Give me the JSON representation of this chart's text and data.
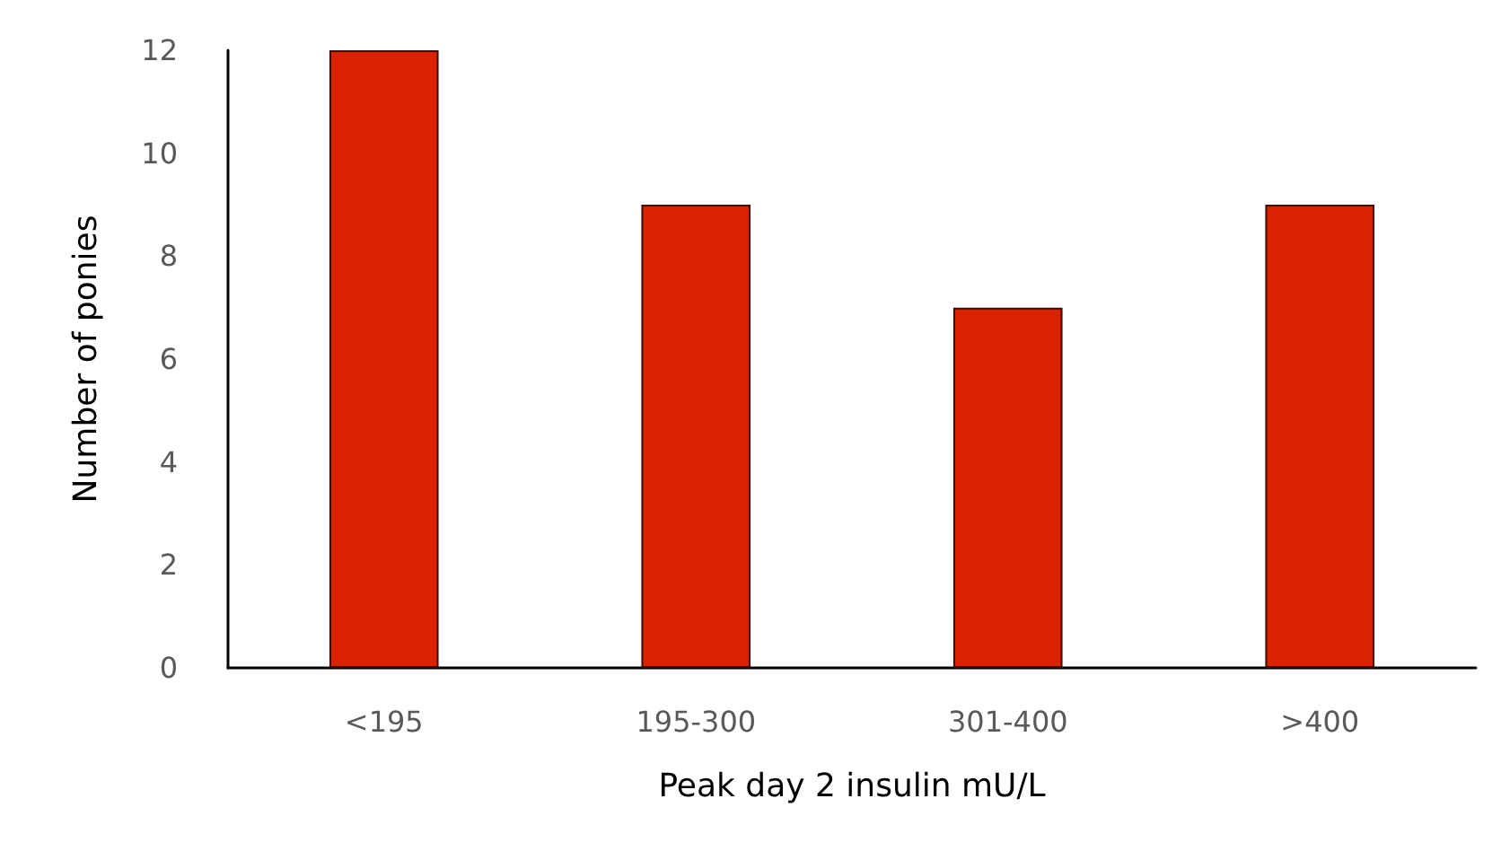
{
  "chart_data": {
    "type": "bar",
    "xlabel": "Peak day 2 insulin mU/L",
    "ylabel": "Number of ponies",
    "categories": [
      "<195",
      "195-300",
      "301-400",
      ">400"
    ],
    "values": [
      12,
      9,
      7,
      9
    ],
    "color": "#d82200",
    "ylim": [
      0,
      12
    ],
    "yticks": [
      0,
      2,
      4,
      6,
      8,
      10,
      12
    ],
    "grid": false
  }
}
